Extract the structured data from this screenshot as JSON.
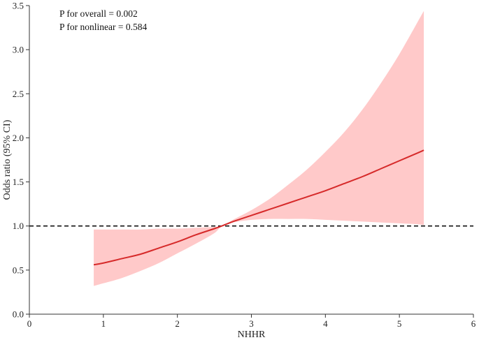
{
  "chart_data": {
    "type": "line",
    "title": "",
    "xlabel": "NHHR",
    "ylabel": "Odds ratio (95% CI)",
    "xlim": [
      0,
      6
    ],
    "ylim": [
      0.0,
      3.5
    ],
    "xticks": [
      0,
      1,
      2,
      3,
      4,
      5,
      6
    ],
    "yticks": [
      "0.0",
      "0.5",
      "1.0",
      "1.5",
      "2.0",
      "2.5",
      "3.0",
      "3.5"
    ],
    "annotations": [
      "P for overall = 0.002",
      "P for nonlinear = 0.584"
    ],
    "reference_line": {
      "y": 1.0,
      "style": "dashed"
    },
    "series": [
      {
        "x": [
          0.87,
          1.0,
          1.25,
          1.5,
          1.75,
          2.0,
          2.25,
          2.5,
          2.6,
          2.75,
          3.0,
          3.25,
          3.5,
          3.75,
          4.0,
          4.25,
          4.5,
          4.75,
          5.0,
          5.25,
          5.33
        ],
        "estimate": [
          0.56,
          0.58,
          0.63,
          0.68,
          0.75,
          0.82,
          0.9,
          0.97,
          1.0,
          1.05,
          1.12,
          1.19,
          1.26,
          1.33,
          1.4,
          1.48,
          1.56,
          1.65,
          1.74,
          1.83,
          1.86
        ],
        "lower": [
          0.32,
          0.35,
          0.41,
          0.49,
          0.58,
          0.69,
          0.8,
          0.92,
          1.0,
          1.04,
          1.07,
          1.08,
          1.08,
          1.08,
          1.07,
          1.06,
          1.05,
          1.04,
          1.03,
          1.02,
          1.01
        ],
        "upper": [
          0.96,
          0.96,
          0.96,
          0.96,
          0.97,
          0.97,
          0.98,
          0.99,
          1.0,
          1.07,
          1.18,
          1.31,
          1.47,
          1.64,
          1.84,
          2.06,
          2.32,
          2.62,
          2.95,
          3.32,
          3.44
        ],
        "line_color": "#d62a2a",
        "band_color": "#ffc9c9"
      }
    ]
  }
}
